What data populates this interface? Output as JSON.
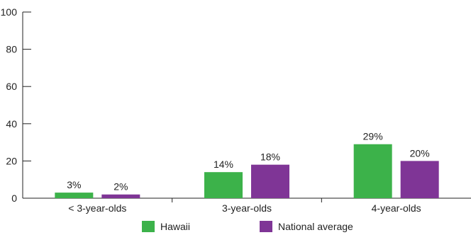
{
  "chart_data": {
    "type": "bar",
    "categories": [
      "< 3-year-olds",
      "3-year-olds",
      "4-year-olds"
    ],
    "series": [
      {
        "name": "Hawaii",
        "values": [
          3,
          14,
          29
        ],
        "labels": [
          "3%",
          "14%",
          "29%"
        ],
        "color": "#3cb24a"
      },
      {
        "name": "National average",
        "values": [
          2,
          18,
          20
        ],
        "labels": [
          "2%",
          "18%",
          "20%"
        ],
        "color": "#7f3596"
      }
    ],
    "yticks": [
      0,
      20,
      40,
      60,
      80,
      100
    ],
    "ylim": [
      0,
      100
    ],
    "grid": false,
    "legend_position": "bottom"
  }
}
